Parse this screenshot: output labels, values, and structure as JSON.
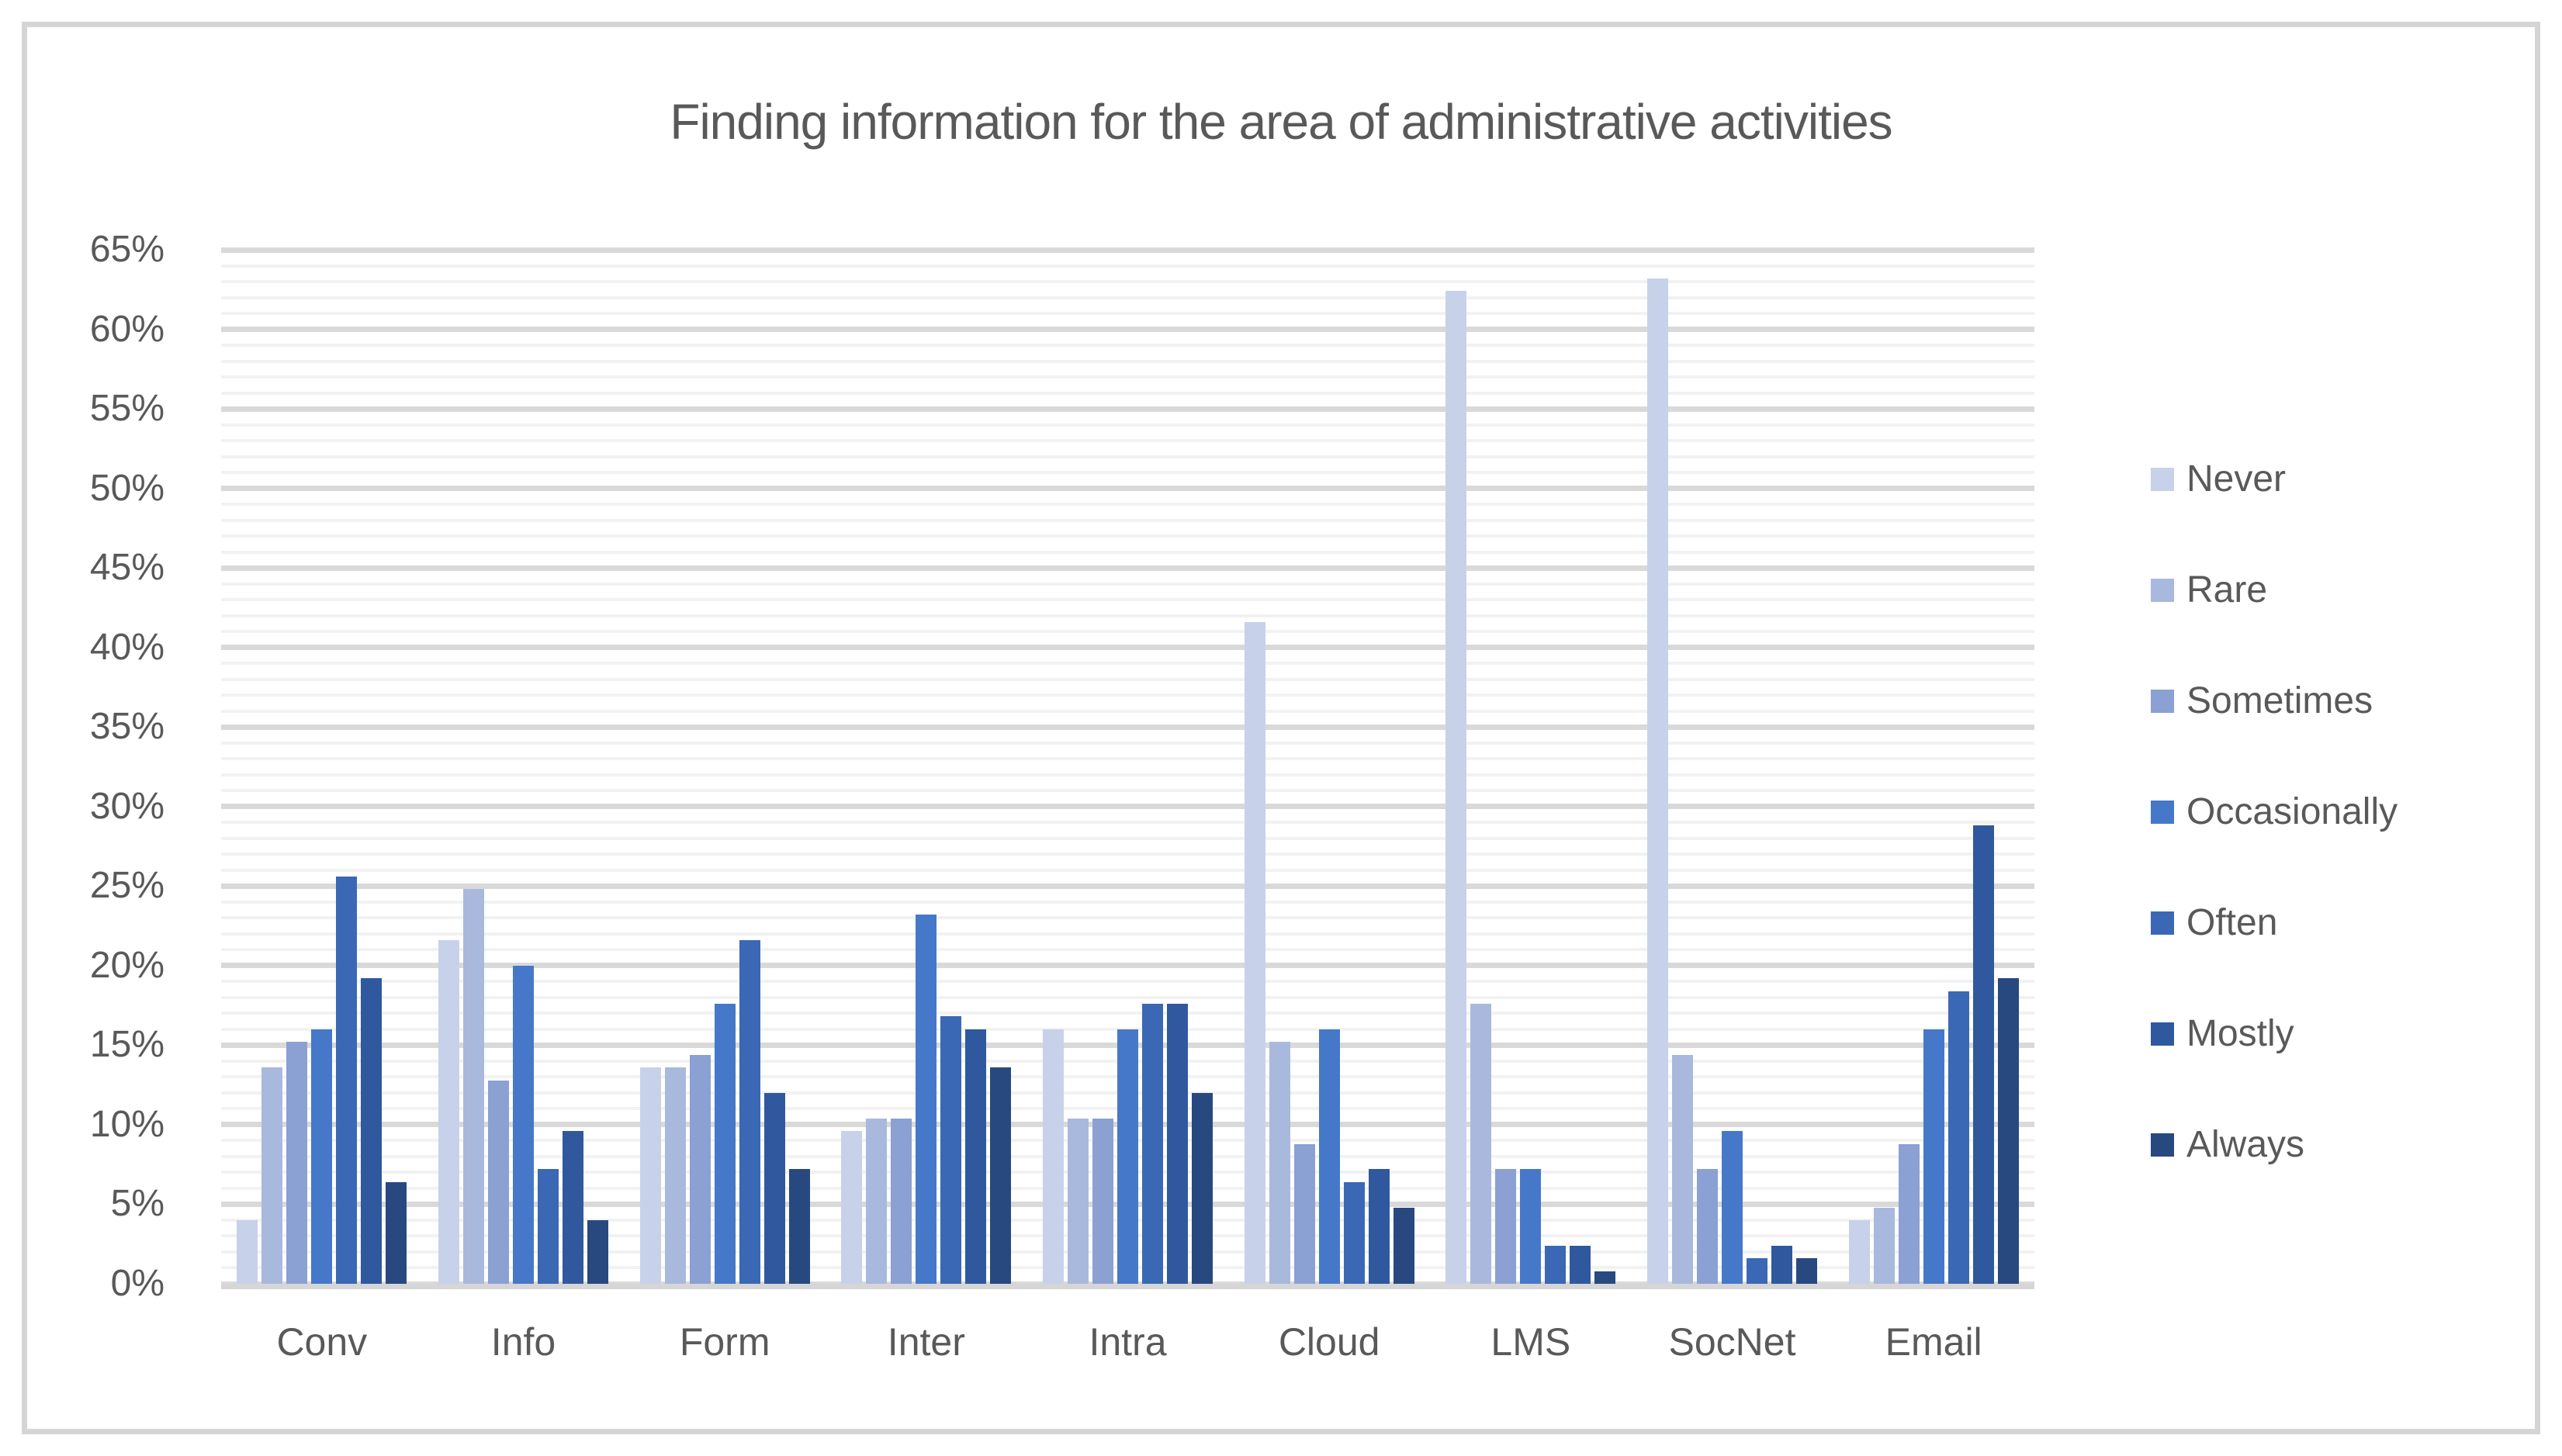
{
  "figure": {
    "border_color": "#d5d5d5",
    "background_color": "#ffffff",
    "text_color": "#595959"
  },
  "chart_data": {
    "type": "bar",
    "title": "Finding information for the area of administrative activities",
    "xlabel": "",
    "ylabel": "",
    "ylim": [
      0,
      65
    ],
    "ytick_step_major_pct": 5,
    "ytick_step_minor_pct": 1,
    "ytick_labels": [
      "0%",
      "5%",
      "10%",
      "15%",
      "20%",
      "25%",
      "30%",
      "35%",
      "40%",
      "45%",
      "50%",
      "55%",
      "60%",
      "65%"
    ],
    "grid": {
      "minor_color": "#f2f2f2",
      "major_color": "#d9d9d9",
      "horizontal": true,
      "vertical": false
    },
    "legend_position": "right",
    "categories": [
      "Conv",
      "Info",
      "Form",
      "Inter",
      "Intra",
      "Cloud",
      "LMS",
      "SocNet",
      "Email"
    ],
    "series": [
      {
        "name": "Never",
        "color": "#c7d1ea",
        "values": [
          4.0,
          21.6,
          13.6,
          9.6,
          16.0,
          41.6,
          62.4,
          63.2,
          4.0
        ]
      },
      {
        "name": "Rare",
        "color": "#a9b9dd",
        "values": [
          13.6,
          24.8,
          13.6,
          10.4,
          10.4,
          15.2,
          17.6,
          14.4,
          4.8
        ]
      },
      {
        "name": "Sometimes",
        "color": "#8ba0d3",
        "values": [
          15.2,
          12.8,
          14.4,
          10.4,
          10.4,
          8.8,
          7.2,
          7.2,
          8.8
        ]
      },
      {
        "name": "Occasionally",
        "color": "#4678c9",
        "values": [
          16.0,
          20.0,
          17.6,
          23.2,
          16.0,
          16.0,
          7.2,
          9.6,
          16.0
        ]
      },
      {
        "name": "Often",
        "color": "#3a68b4",
        "values": [
          25.6,
          7.2,
          21.6,
          16.8,
          17.6,
          6.4,
          2.4,
          1.6,
          18.4
        ]
      },
      {
        "name": "Mostly",
        "color": "#30589f",
        "values": [
          19.2,
          9.6,
          12.0,
          16.0,
          17.6,
          7.2,
          2.4,
          2.4,
          28.8
        ]
      },
      {
        "name": "Always",
        "color": "#284880",
        "values": [
          6.4,
          4.0,
          7.2,
          13.6,
          12.0,
          4.8,
          0.8,
          1.6,
          19.2
        ]
      }
    ]
  }
}
